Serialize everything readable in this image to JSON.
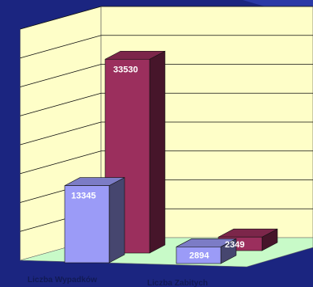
{
  "colors": {
    "background": "#1b2580",
    "wall": "#fefec8",
    "floor": "#c8fac8",
    "gridline": "#111111",
    "series_blue": "#9b9bf7",
    "series_maroon": "#9b2f5d"
  },
  "chart_data": {
    "type": "bar",
    "three_d": true,
    "grid": true,
    "legend": "none",
    "ylim": [
      0,
      40000
    ],
    "categories": [
      "Liczba Wypadków",
      "Liczba Zabitych"
    ],
    "series": [
      {
        "values": [
          13345,
          2894
        ],
        "color": "#9b9bf7"
      },
      {
        "values": [
          33530,
          2349
        ],
        "color": "#9b2f5d"
      }
    ],
    "data_labels": [
      "13345",
      "33530",
      "2894",
      "2349"
    ]
  }
}
